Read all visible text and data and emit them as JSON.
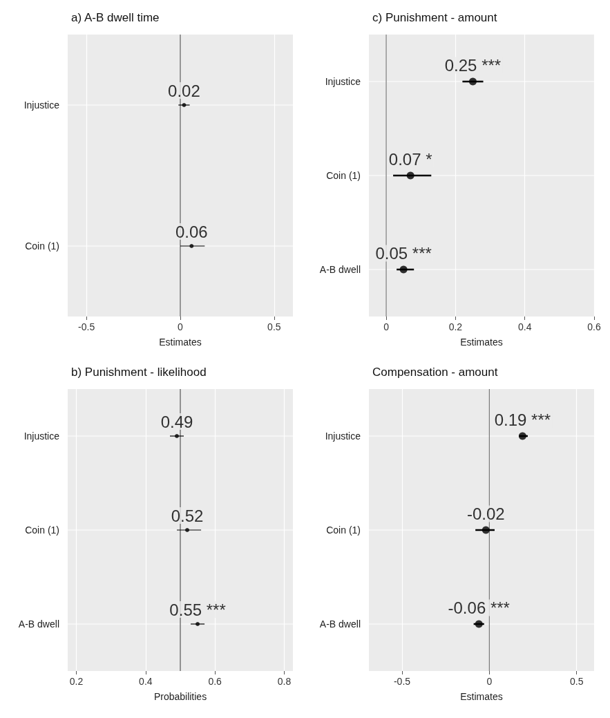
{
  "chart_data": [
    {
      "type": "scatter",
      "orientation": "horizontal",
      "title": "a) A-B dwell time",
      "xlabel": "Estimates",
      "categories": [
        "Injustice",
        "Coin (1)"
      ],
      "values": [
        0.02,
        0.06
      ],
      "errors": [
        [
          -0.01,
          0.05
        ],
        [
          0.0,
          0.13
        ]
      ],
      "value_labels": [
        "0.02",
        "0.06"
      ],
      "color": "#000000",
      "xlim": [
        -0.6,
        0.6
      ],
      "xticks": [
        -0.5,
        0,
        0.5
      ],
      "ref_lines": [
        {
          "axis": "x",
          "value": 0,
          "color": "#555555"
        }
      ],
      "grid": true,
      "marker": "circle"
    },
    {
      "type": "scatter",
      "orientation": "horizontal",
      "title": "c) Punishment - amount",
      "xlabel": "Estimates",
      "categories": [
        "Injustice",
        "Coin (1)",
        "A-B dwell"
      ],
      "values": [
        0.25,
        0.07,
        0.05
      ],
      "errors": [
        [
          0.22,
          0.28
        ],
        [
          0.02,
          0.13
        ],
        [
          0.03,
          0.08
        ]
      ],
      "value_labels": [
        "0.25 ***",
        "0.07 *",
        "0.05 ***"
      ],
      "color": "#000000",
      "xlim": [
        -0.05,
        0.6
      ],
      "xticks": [
        0,
        0.2,
        0.4,
        0.6
      ],
      "ref_lines": [
        {
          "axis": "x",
          "value": 0,
          "color": "#777777"
        }
      ],
      "grid": true,
      "marker": "circle"
    },
    {
      "type": "scatter",
      "orientation": "horizontal",
      "title": "b) Punishment - likelihood",
      "xlabel": "Probabilities",
      "categories": [
        "Injustice",
        "Coin (1)",
        "A-B dwell"
      ],
      "values": [
        0.49,
        0.52,
        0.55
      ],
      "errors": [
        [
          0.47,
          0.51
        ],
        [
          0.49,
          0.56
        ],
        [
          0.53,
          0.57
        ]
      ],
      "value_labels": [
        "0.49",
        "0.52",
        "0.55 ***"
      ],
      "color": "#000000",
      "xlim": [
        0.175,
        0.825
      ],
      "xticks": [
        0.2,
        0.4,
        0.6,
        0.8
      ],
      "ref_lines": [
        {
          "axis": "x",
          "value": 0.5,
          "color": "#555555"
        }
      ],
      "grid": true,
      "marker": "circle"
    },
    {
      "type": "scatter",
      "orientation": "horizontal",
      "title": "Compensation - amount",
      "xlabel": "Estimates",
      "categories": [
        "Injustice",
        "Coin (1)",
        "A-B dwell"
      ],
      "values": [
        0.19,
        -0.02,
        -0.06
      ],
      "errors": [
        [
          0.17,
          0.22
        ],
        [
          -0.08,
          0.03
        ],
        [
          -0.09,
          -0.03
        ]
      ],
      "value_labels": [
        "0.19 ***",
        "-0.02",
        "-0.06 ***"
      ],
      "color": "#000000",
      "xlim": [
        -0.69,
        0.6
      ],
      "xticks": [
        -0.5,
        0,
        0.5
      ],
      "ref_lines": [
        {
          "axis": "x",
          "value": 0,
          "color": "#777777"
        }
      ],
      "grid": true,
      "marker": "circle"
    }
  ]
}
